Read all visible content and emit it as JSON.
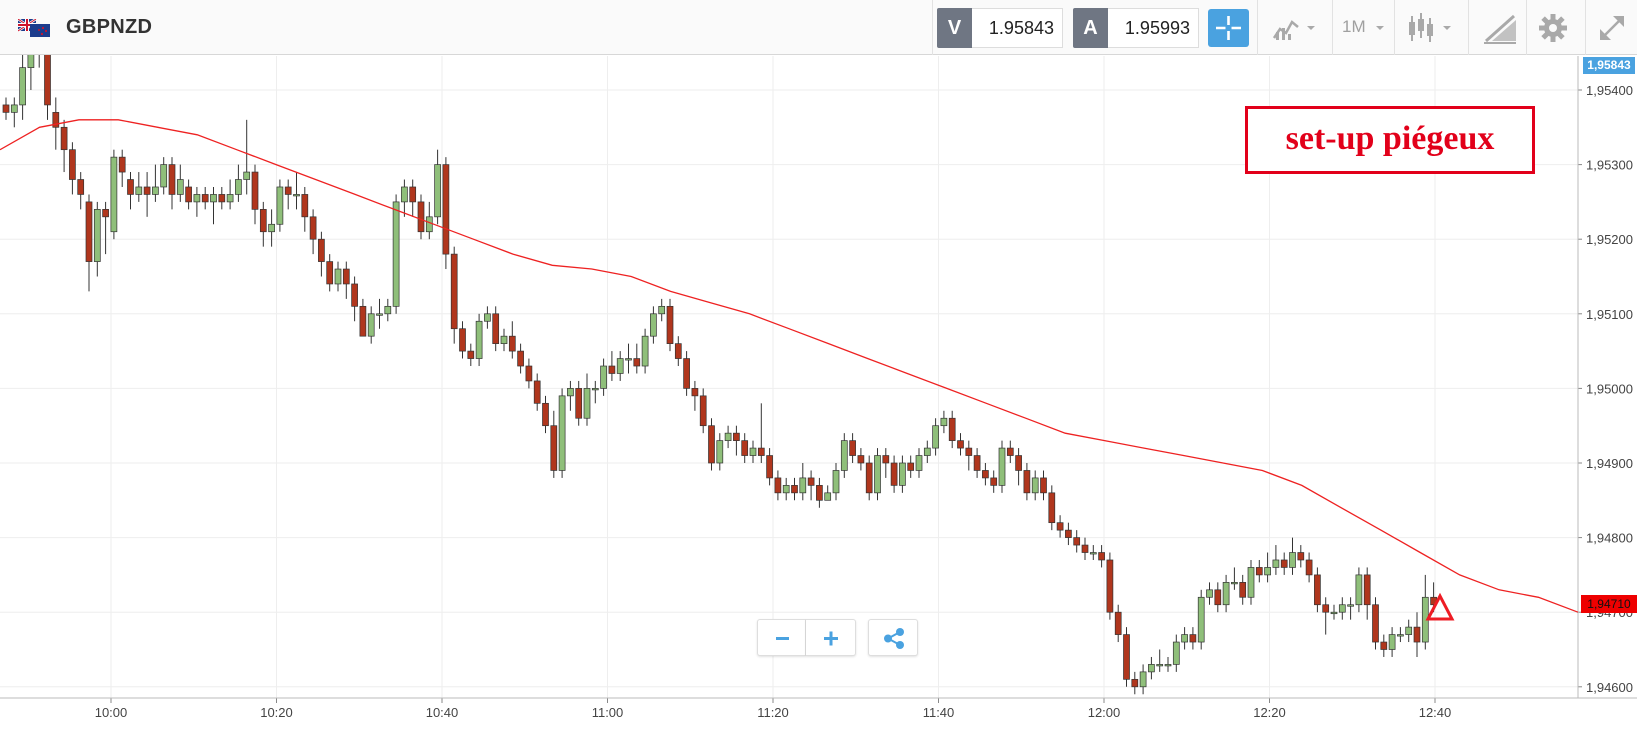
{
  "toolbar": {
    "symbol": "GBPNZD",
    "flag_icon": "gbp-nzd-flags-icon",
    "sell_badge": "V",
    "sell_price": "1.95843",
    "buy_badge": "A",
    "buy_price": "1.95993",
    "interval": "1M",
    "icons": [
      "crosshair-icon",
      "chart-type-icon",
      "candlestick-icon",
      "drawing-tools-icon",
      "gear-icon",
      "fullscreen-icon"
    ]
  },
  "colors": {
    "up": "#8fbf7a",
    "down": "#b0361d",
    "ma": "#ee2222",
    "accent": "#4aa2e0",
    "annotation": "#e2001a"
  },
  "annotation": {
    "label": "set-up piégeux",
    "marker": "warning-triangle-icon",
    "marker_time": "12:40"
  },
  "price_tags": {
    "bid": "1,95843",
    "last": "1,94710"
  },
  "zoom_controls": [
    "minus-icon",
    "plus-icon",
    "share-icon"
  ],
  "chart_data": {
    "type": "candlestick",
    "symbol": "GBPNZD",
    "interval": "1M",
    "x_ticks": [
      "10:00",
      "10:20",
      "10:40",
      "11:00",
      "11:20",
      "11:40",
      "12:00",
      "12:20",
      "12:40"
    ],
    "y_ticks": [
      "1,95400",
      "1,95300",
      "1,95200",
      "1,95100",
      "1,95000",
      "1,94900",
      "1,94800",
      "1,94700",
      "1,94600"
    ],
    "y_tick_values": [
      1.954,
      1.953,
      1.952,
      1.951,
      1.95,
      1.949,
      1.948,
      1.947,
      1.946
    ],
    "ylim": [
      1.94585,
      1.95435
    ],
    "grid": true,
    "ma_line": [
      1.9532,
      1.9535,
      1.9536,
      1.9536,
      1.9535,
      1.9534,
      1.9532,
      1.953,
      1.9528,
      1.9526,
      1.9524,
      1.9522,
      1.952,
      1.9518,
      1.95165,
      1.9516,
      1.9515,
      1.9513,
      1.95115,
      1.951,
      1.9508,
      1.9506,
      1.9504,
      1.9502,
      1.95,
      1.9498,
      1.9496,
      1.9494,
      1.9493,
      1.9492,
      1.9491,
      1.949,
      1.9489,
      1.9487,
      1.9484,
      1.9481,
      1.9478,
      1.9475,
      1.9473,
      1.9472,
      1.947
    ],
    "candles": [
      [
        1.9538,
        1.9537,
        1.9539,
        1.9536
      ],
      [
        1.9537,
        1.9538,
        1.9539,
        1.9535
      ],
      [
        1.9538,
        1.9543,
        1.9545,
        1.9536
      ],
      [
        1.9543,
        1.9545,
        1.9546,
        1.954
      ],
      [
        1.9545,
        1.9547,
        1.9548,
        1.9543
      ],
      [
        1.9547,
        1.9538,
        1.9548,
        1.9536
      ],
      [
        1.9537,
        1.9535,
        1.9539,
        1.9532
      ],
      [
        1.9535,
        1.9532,
        1.9536,
        1.9529
      ],
      [
        1.9532,
        1.9528,
        1.9533,
        1.9526
      ],
      [
        1.9528,
        1.9526,
        1.9529,
        1.9524
      ],
      [
        1.9525,
        1.9517,
        1.9526,
        1.9513
      ],
      [
        1.9517,
        1.9524,
        1.9525,
        1.9515
      ],
      [
        1.9524,
        1.9523,
        1.9525,
        1.9518
      ],
      [
        1.9521,
        1.9531,
        1.9532,
        1.952
      ],
      [
        1.9531,
        1.9529,
        1.9532,
        1.9527
      ],
      [
        1.9528,
        1.9526,
        1.9529,
        1.9524
      ],
      [
        1.9526,
        1.9527,
        1.9529,
        1.9525
      ],
      [
        1.9527,
        1.9526,
        1.9529,
        1.9523
      ],
      [
        1.9526,
        1.9527,
        1.953,
        1.9525
      ],
      [
        1.9527,
        1.953,
        1.9531,
        1.9526
      ],
      [
        1.953,
        1.9526,
        1.9531,
        1.9524
      ],
      [
        1.9526,
        1.9528,
        1.953,
        1.9525
      ],
      [
        1.9527,
        1.9525,
        1.9528,
        1.9524
      ],
      [
        1.9525,
        1.9526,
        1.9527,
        1.9523
      ],
      [
        1.9526,
        1.9525,
        1.9527,
        1.9524
      ],
      [
        1.9525,
        1.9526,
        1.9527,
        1.9522
      ],
      [
        1.9526,
        1.9525,
        1.9527,
        1.9524
      ],
      [
        1.9525,
        1.9526,
        1.9528,
        1.9524
      ],
      [
        1.9526,
        1.9528,
        1.953,
        1.9525
      ],
      [
        1.9528,
        1.9529,
        1.9536,
        1.9526
      ],
      [
        1.9529,
        1.9524,
        1.953,
        1.9522
      ],
      [
        1.9524,
        1.9521,
        1.9525,
        1.9519
      ],
      [
        1.9521,
        1.9522,
        1.9524,
        1.9519
      ],
      [
        1.9522,
        1.9527,
        1.9528,
        1.9521
      ],
      [
        1.9527,
        1.9526,
        1.9528,
        1.9524
      ],
      [
        1.9526,
        1.9526,
        1.9529,
        1.9524
      ],
      [
        1.9526,
        1.9523,
        1.9527,
        1.9521
      ],
      [
        1.9523,
        1.952,
        1.9524,
        1.9518
      ],
      [
        1.952,
        1.9517,
        1.9521,
        1.9515
      ],
      [
        1.9517,
        1.9514,
        1.9518,
        1.9513
      ],
      [
        1.9514,
        1.9516,
        1.9517,
        1.9513
      ],
      [
        1.9516,
        1.9514,
        1.9517,
        1.9512
      ],
      [
        1.9514,
        1.9511,
        1.9515,
        1.9509
      ],
      [
        1.9511,
        1.9507,
        1.9512,
        1.9507
      ],
      [
        1.9507,
        1.951,
        1.9511,
        1.9506
      ],
      [
        1.951,
        1.951,
        1.9512,
        1.9508
      ],
      [
        1.951,
        1.9511,
        1.9512,
        1.9509
      ],
      [
        1.9511,
        1.9525,
        1.9526,
        1.951
      ],
      [
        1.9525,
        1.9527,
        1.9528,
        1.9523
      ],
      [
        1.9527,
        1.9525,
        1.9528,
        1.9523
      ],
      [
        1.9525,
        1.9521,
        1.9526,
        1.952
      ],
      [
        1.9521,
        1.9523,
        1.9525,
        1.952
      ],
      [
        1.9523,
        1.953,
        1.9532,
        1.9522
      ],
      [
        1.953,
        1.9518,
        1.9531,
        1.9516
      ],
      [
        1.9518,
        1.9508,
        1.9519,
        1.9506
      ],
      [
        1.9508,
        1.9505,
        1.9509,
        1.9504
      ],
      [
        1.9505,
        1.9504,
        1.9506,
        1.9503
      ],
      [
        1.9504,
        1.9509,
        1.951,
        1.9503
      ],
      [
        1.9509,
        1.951,
        1.9511,
        1.9508
      ],
      [
        1.951,
        1.9506,
        1.9511,
        1.9505
      ],
      [
        1.9506,
        1.9507,
        1.9508,
        1.9505
      ],
      [
        1.9507,
        1.9505,
        1.9509,
        1.9504
      ],
      [
        1.9505,
        1.9503,
        1.9506,
        1.9502
      ],
      [
        1.9503,
        1.9501,
        1.9504,
        1.95
      ],
      [
        1.9501,
        1.9498,
        1.9502,
        1.9497
      ],
      [
        1.9498,
        1.9495,
        1.9499,
        1.9494
      ],
      [
        1.9495,
        1.9489,
        1.9497,
        1.9488
      ],
      [
        1.9489,
        1.9499,
        1.95,
        1.9488
      ],
      [
        1.9499,
        1.95,
        1.9501,
        1.9497
      ],
      [
        1.95,
        1.9496,
        1.9501,
        1.9495
      ],
      [
        1.9496,
        1.95,
        1.9502,
        1.9495
      ],
      [
        1.95,
        1.95,
        1.9501,
        1.9498
      ],
      [
        1.95,
        1.9503,
        1.9504,
        1.9499
      ],
      [
        1.9503,
        1.9502,
        1.9505,
        1.9501
      ],
      [
        1.9502,
        1.9504,
        1.9505,
        1.9501
      ],
      [
        1.9504,
        1.9504,
        1.9506,
        1.9502
      ],
      [
        1.9504,
        1.9503,
        1.9506,
        1.9502
      ],
      [
        1.9503,
        1.9507,
        1.9508,
        1.9502
      ],
      [
        1.9507,
        1.951,
        1.9511,
        1.9506
      ],
      [
        1.951,
        1.9511,
        1.9512,
        1.9509
      ],
      [
        1.9511,
        1.9506,
        1.9512,
        1.9505
      ],
      [
        1.9506,
        1.9504,
        1.9507,
        1.9503
      ],
      [
        1.9504,
        1.95,
        1.9505,
        1.9499
      ],
      [
        1.95,
        1.9499,
        1.9501,
        1.9497
      ],
      [
        1.9499,
        1.9495,
        1.95,
        1.9494
      ],
      [
        1.9495,
        1.949,
        1.9496,
        1.9489
      ],
      [
        1.949,
        1.9493,
        1.9494,
        1.9489
      ],
      [
        1.9493,
        1.9494,
        1.9495,
        1.9492
      ],
      [
        1.9494,
        1.9493,
        1.9495,
        1.9491
      ],
      [
        1.9493,
        1.9491,
        1.9494,
        1.949
      ],
      [
        1.9491,
        1.9492,
        1.9493,
        1.949
      ],
      [
        1.9492,
        1.9491,
        1.9498,
        1.949
      ],
      [
        1.9491,
        1.9488,
        1.9492,
        1.9487
      ],
      [
        1.9488,
        1.9486,
        1.9489,
        1.9485
      ],
      [
        1.9486,
        1.9487,
        1.9488,
        1.9485
      ],
      [
        1.9487,
        1.9486,
        1.9488,
        1.9485
      ],
      [
        1.9486,
        1.9488,
        1.949,
        1.9485
      ],
      [
        1.9488,
        1.9487,
        1.9489,
        1.9485
      ],
      [
        1.9487,
        1.9485,
        1.9488,
        1.9484
      ],
      [
        1.9485,
        1.9486,
        1.9487,
        1.9485
      ],
      [
        1.9486,
        1.9489,
        1.949,
        1.9485
      ],
      [
        1.9489,
        1.9493,
        1.9494,
        1.9488
      ],
      [
        1.9493,
        1.9491,
        1.9494,
        1.949
      ],
      [
        1.9491,
        1.949,
        1.9492,
        1.9489
      ],
      [
        1.949,
        1.9486,
        1.9491,
        1.9485
      ],
      [
        1.9486,
        1.9491,
        1.9492,
        1.9485
      ],
      [
        1.9491,
        1.949,
        1.9492,
        1.9488
      ],
      [
        1.949,
        1.9487,
        1.9491,
        1.9486
      ],
      [
        1.9487,
        1.949,
        1.9491,
        1.9486
      ],
      [
        1.949,
        1.9489,
        1.9491,
        1.9488
      ],
      [
        1.9489,
        1.9491,
        1.9492,
        1.9488
      ],
      [
        1.9491,
        1.9492,
        1.9493,
        1.949
      ],
      [
        1.9492,
        1.9495,
        1.9496,
        1.9491
      ],
      [
        1.9495,
        1.9496,
        1.9497,
        1.9494
      ],
      [
        1.9496,
        1.9493,
        1.9497,
        1.9492
      ],
      [
        1.9493,
        1.9492,
        1.9494,
        1.9491
      ],
      [
        1.9492,
        1.9491,
        1.9493,
        1.9489
      ],
      [
        1.9491,
        1.9489,
        1.9492,
        1.9488
      ],
      [
        1.9489,
        1.9488,
        1.949,
        1.9487
      ],
      [
        1.9488,
        1.9487,
        1.9489,
        1.9486
      ],
      [
        1.9487,
        1.9492,
        1.9493,
        1.9486
      ],
      [
        1.9492,
        1.9491,
        1.9493,
        1.949
      ],
      [
        1.9491,
        1.9489,
        1.9492,
        1.9487
      ],
      [
        1.9489,
        1.9486,
        1.949,
        1.9485
      ],
      [
        1.9486,
        1.9488,
        1.9489,
        1.9485
      ],
      [
        1.9488,
        1.9486,
        1.9489,
        1.9485
      ],
      [
        1.9486,
        1.9482,
        1.9487,
        1.9481
      ],
      [
        1.9482,
        1.9481,
        1.9483,
        1.948
      ],
      [
        1.9481,
        1.948,
        1.9482,
        1.9479
      ],
      [
        1.948,
        1.9479,
        1.9481,
        1.9478
      ],
      [
        1.9479,
        1.9478,
        1.948,
        1.9477
      ],
      [
        1.9478,
        1.9478,
        1.9479,
        1.9477
      ],
      [
        1.9478,
        1.9477,
        1.9479,
        1.9476
      ],
      [
        1.9477,
        1.947,
        1.9478,
        1.9469
      ],
      [
        1.947,
        1.9467,
        1.9471,
        1.9466
      ],
      [
        1.9467,
        1.9461,
        1.9468,
        1.946
      ],
      [
        1.9461,
        1.946,
        1.9462,
        1.9459
      ],
      [
        1.946,
        1.9462,
        1.9463,
        1.9459
      ],
      [
        1.9462,
        1.9463,
        1.9464,
        1.9461
      ],
      [
        1.9463,
        1.9463,
        1.9465,
        1.9462
      ],
      [
        1.9463,
        1.9463,
        1.9464,
        1.9462
      ],
      [
        1.9463,
        1.9466,
        1.9467,
        1.9462
      ],
      [
        1.9466,
        1.9467,
        1.9468,
        1.9465
      ],
      [
        1.9467,
        1.9466,
        1.9468,
        1.9465
      ],
      [
        1.9466,
        1.9472,
        1.9473,
        1.9465
      ],
      [
        1.9472,
        1.9473,
        1.9474,
        1.9471
      ],
      [
        1.9473,
        1.9471,
        1.9474,
        1.947
      ],
      [
        1.9471,
        1.9474,
        1.9475,
        1.947
      ],
      [
        1.9474,
        1.9474,
        1.9476,
        1.9473
      ],
      [
        1.9474,
        1.9472,
        1.9475,
        1.9471
      ],
      [
        1.9472,
        1.9476,
        1.9477,
        1.9471
      ],
      [
        1.9476,
        1.9475,
        1.9477,
        1.9474
      ],
      [
        1.9475,
        1.9476,
        1.9478,
        1.9474
      ],
      [
        1.9476,
        1.9477,
        1.9479,
        1.9475
      ],
      [
        1.9477,
        1.9476,
        1.9478,
        1.9475
      ],
      [
        1.9476,
        1.9478,
        1.948,
        1.9475
      ],
      [
        1.9478,
        1.9477,
        1.9479,
        1.9476
      ],
      [
        1.9477,
        1.9475,
        1.9478,
        1.9474
      ],
      [
        1.9475,
        1.9471,
        1.9476,
        1.947
      ],
      [
        1.9471,
        1.947,
        1.9472,
        1.9467
      ],
      [
        1.947,
        1.947,
        1.9471,
        1.9469
      ],
      [
        1.947,
        1.9471,
        1.9472,
        1.9469
      ],
      [
        1.9471,
        1.9471,
        1.9472,
        1.9469
      ],
      [
        1.9471,
        1.9475,
        1.9476,
        1.947
      ],
      [
        1.9475,
        1.9471,
        1.9476,
        1.9469
      ],
      [
        1.9471,
        1.9466,
        1.9472,
        1.9465
      ],
      [
        1.9466,
        1.9465,
        1.9467,
        1.9464
      ],
      [
        1.9465,
        1.9467,
        1.9468,
        1.9464
      ],
      [
        1.9467,
        1.9467,
        1.9468,
        1.9466
      ],
      [
        1.9467,
        1.9468,
        1.9469,
        1.9466
      ],
      [
        1.9468,
        1.9466,
        1.947,
        1.9464
      ],
      [
        1.9466,
        1.9472,
        1.9475,
        1.9465
      ],
      [
        1.9472,
        1.9471,
        1.9474,
        1.947
      ]
    ]
  }
}
